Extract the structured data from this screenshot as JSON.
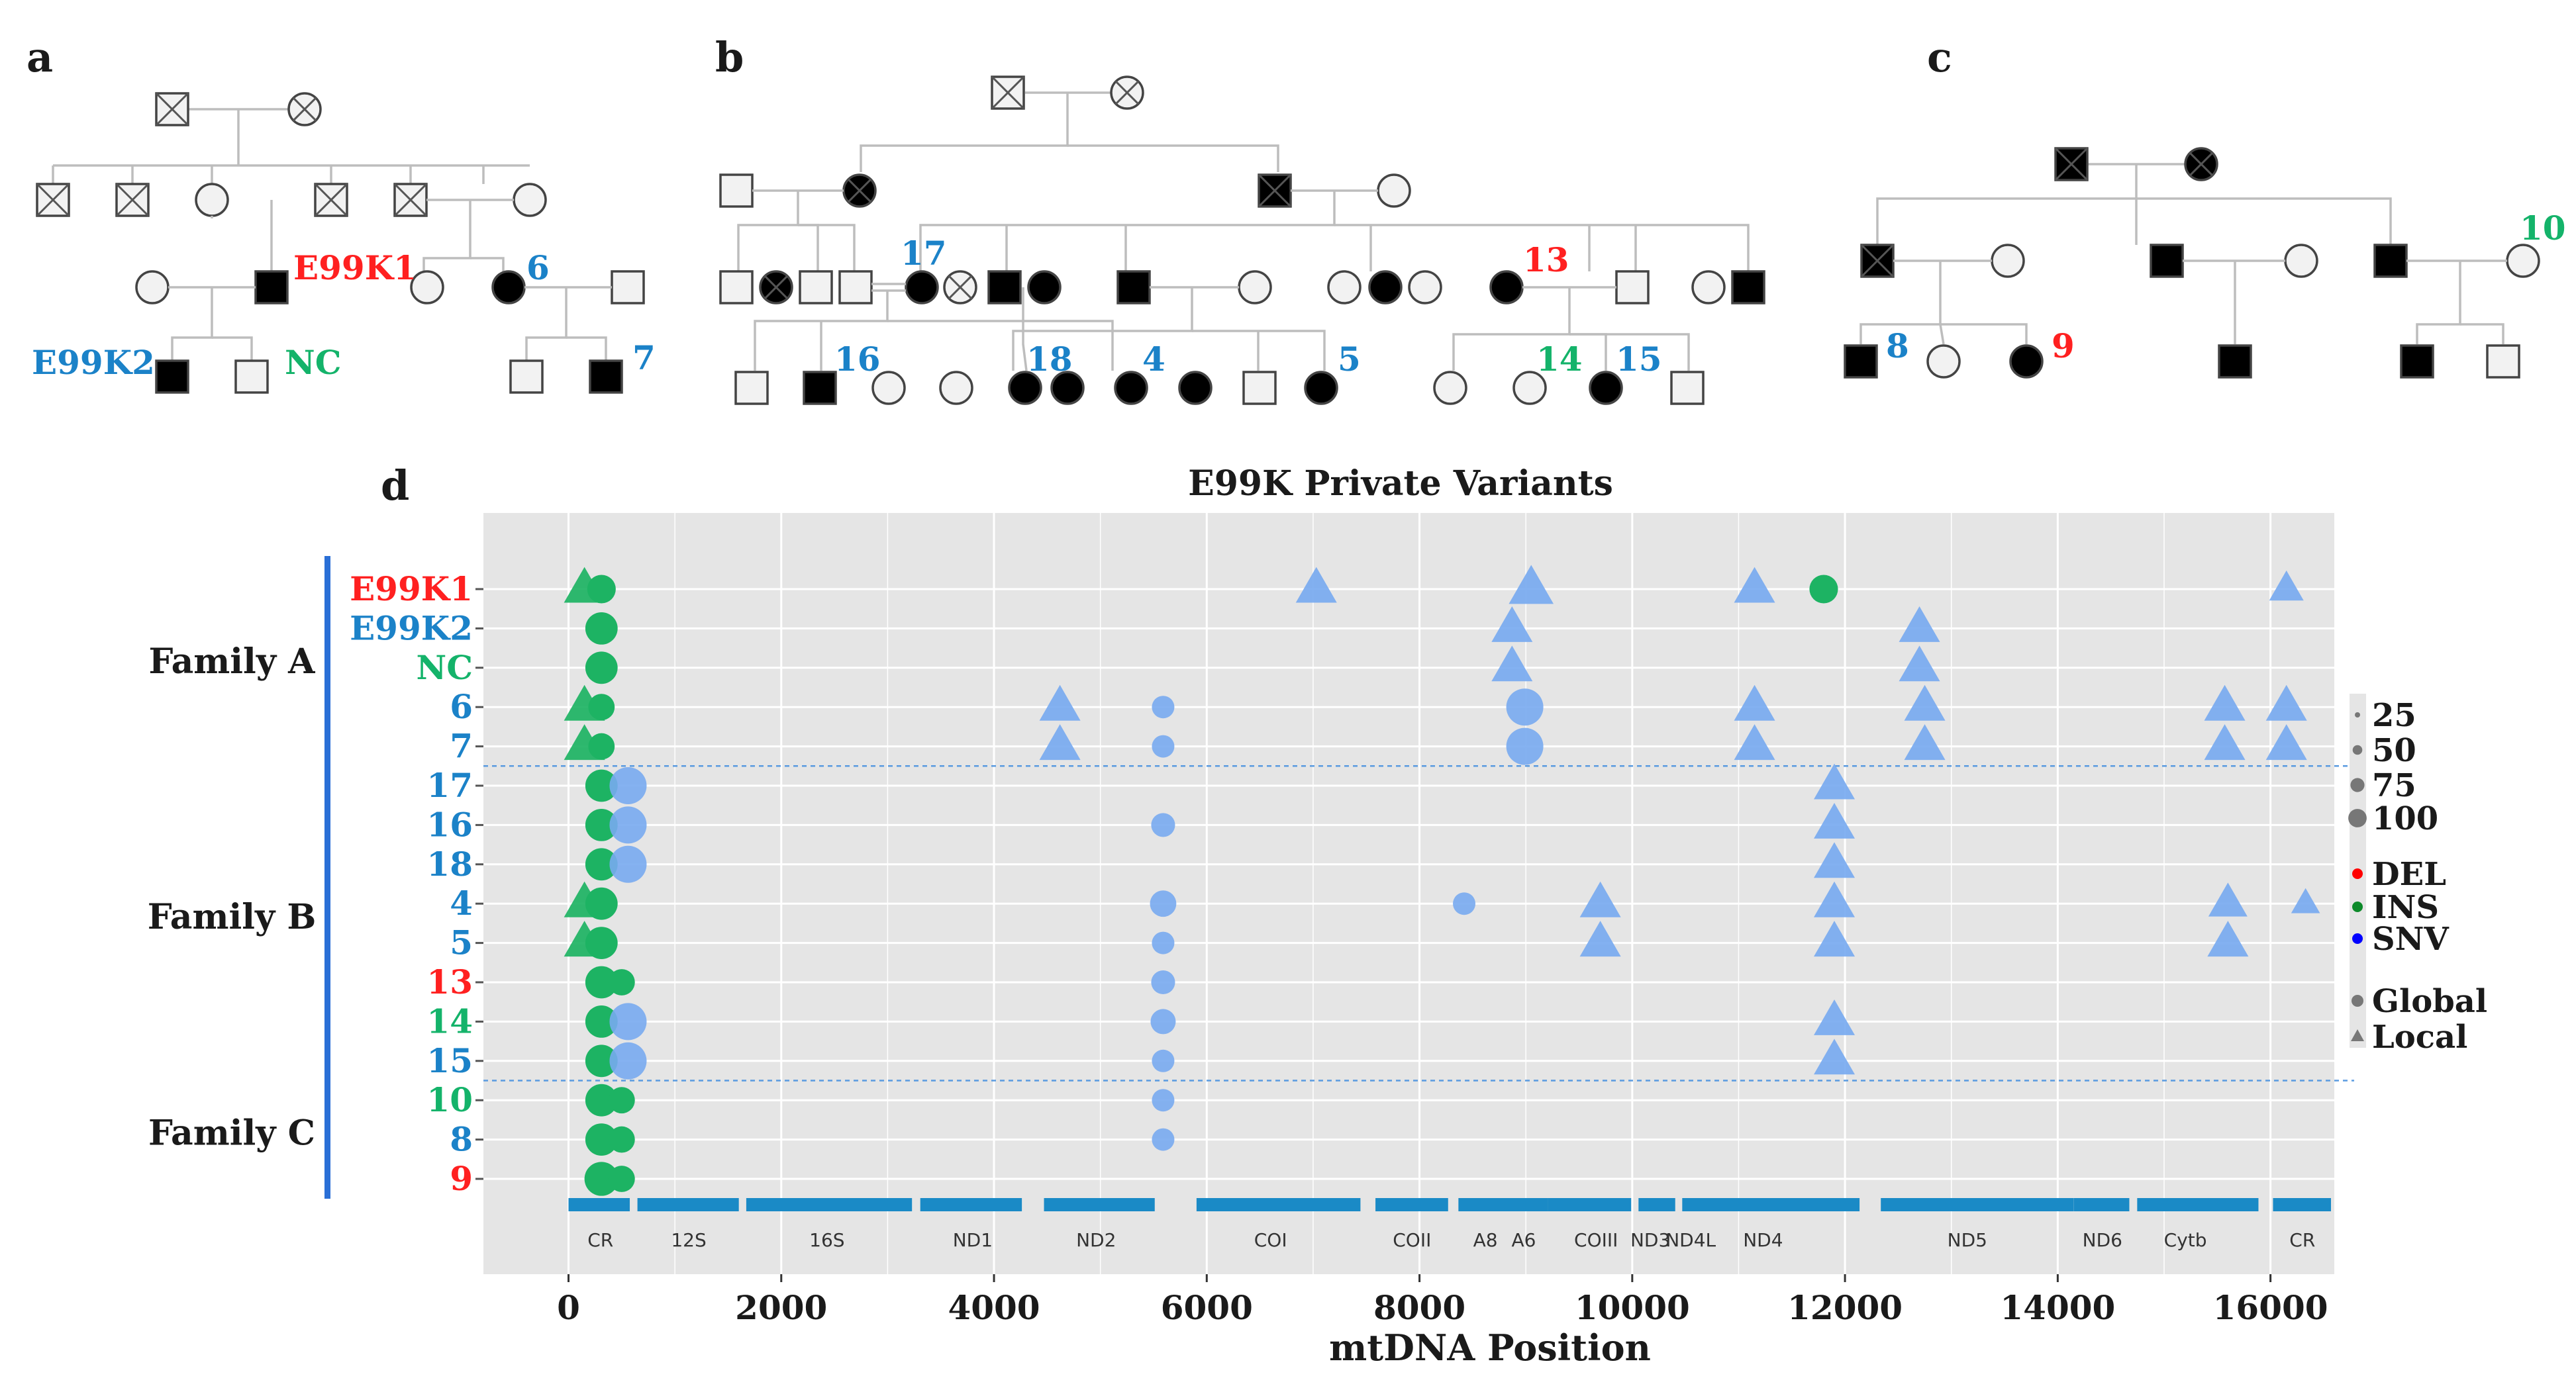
{
  "colors": {
    "red": "#ff2020",
    "blue": "#1b82c8",
    "green": "#14b36a",
    "panel_bg": "#e5e5e5",
    "grid": "#ffffff",
    "marker_blue": "#78aaf0",
    "marker_green": "#1db363",
    "gene_bar": "#1a8ac6",
    "family_bar": "#2a6fd6",
    "affected": "#000000",
    "unaffected": "#f2f2f2"
  },
  "panels": {
    "a": "a",
    "b": "b",
    "c": "c",
    "d": "d"
  },
  "pedigree_labels": {
    "a": [
      {
        "text": "E99K1",
        "color": "red"
      },
      {
        "text": "6",
        "color": "blue"
      },
      {
        "text": "E99K2",
        "color": "blue"
      },
      {
        "text": "NC",
        "color": "green"
      },
      {
        "text": "7",
        "color": "blue"
      }
    ],
    "b": [
      {
        "text": "17",
        "color": "blue"
      },
      {
        "text": "13",
        "color": "red"
      },
      {
        "text": "16",
        "color": "blue"
      },
      {
        "text": "18",
        "color": "blue"
      },
      {
        "text": "4",
        "color": "blue"
      },
      {
        "text": "5",
        "color": "blue"
      },
      {
        "text": "14",
        "color": "green"
      },
      {
        "text": "15",
        "color": "blue"
      }
    ],
    "c": [
      {
        "text": "10",
        "color": "green"
      },
      {
        "text": "8",
        "color": "blue"
      },
      {
        "text": "9",
        "color": "red"
      }
    ]
  },
  "chart_data": {
    "type": "scatter",
    "title": "E99K Private Variants",
    "xlabel": "mtDNA Position",
    "ylabel": "",
    "xlim": [
      -800,
      16600
    ],
    "xticks": [
      0,
      2000,
      4000,
      6000,
      8000,
      10000,
      12000,
      14000,
      16000
    ],
    "families": [
      {
        "name": "Family A",
        "samples": [
          "E99K1",
          "E99K2",
          "NC",
          "6",
          "7"
        ]
      },
      {
        "name": "Family B",
        "samples": [
          "17",
          "16",
          "18",
          "4",
          "5",
          "13",
          "14",
          "15"
        ]
      },
      {
        "name": "Family C",
        "samples": [
          "10",
          "8",
          "9"
        ]
      }
    ],
    "samples": [
      {
        "label": "E99K1",
        "color": "red"
      },
      {
        "label": "E99K2",
        "color": "blue"
      },
      {
        "label": "NC",
        "color": "green"
      },
      {
        "label": "6",
        "color": "blue"
      },
      {
        "label": "7",
        "color": "blue"
      },
      {
        "label": "17",
        "color": "blue"
      },
      {
        "label": "16",
        "color": "blue"
      },
      {
        "label": "18",
        "color": "blue"
      },
      {
        "label": "4",
        "color": "blue"
      },
      {
        "label": "5",
        "color": "blue"
      },
      {
        "label": "13",
        "color": "red"
      },
      {
        "label": "14",
        "color": "green"
      },
      {
        "label": "15",
        "color": "blue"
      },
      {
        "label": "10",
        "color": "green"
      },
      {
        "label": "8",
        "color": "blue"
      },
      {
        "label": "9",
        "color": "red"
      }
    ],
    "genes": [
      {
        "name": "CR",
        "start": 0,
        "end": 576
      },
      {
        "name": "12S",
        "start": 648,
        "end": 1601
      },
      {
        "name": "16S",
        "start": 1671,
        "end": 3229
      },
      {
        "name": "ND1",
        "start": 3307,
        "end": 4262
      },
      {
        "name": "ND2",
        "start": 4470,
        "end": 5511
      },
      {
        "name": "COI",
        "start": 5904,
        "end": 7445
      },
      {
        "name": "COII",
        "start": 7586,
        "end": 8269
      },
      {
        "name": "A8",
        "start": 8366,
        "end": 8572
      },
      {
        "name": "A6",
        "start": 8527,
        "end": 9207
      },
      {
        "name": "COIII",
        "start": 9207,
        "end": 9990
      },
      {
        "name": "ND3",
        "start": 10059,
        "end": 10404
      },
      {
        "name": "ND4L",
        "start": 10470,
        "end": 10766
      },
      {
        "name": "ND4",
        "start": 10760,
        "end": 12137
      },
      {
        "name": "ND5",
        "start": 12337,
        "end": 14148
      },
      {
        "name": "ND6",
        "start": 14149,
        "end": 14673
      },
      {
        "name": "Cytb",
        "start": 14747,
        "end": 15887
      },
      {
        "name": "CR",
        "start": 16024,
        "end": 16569
      }
    ],
    "gene_label_positions": [
      {
        "name": "CR",
        "x": 300
      },
      {
        "name": "12S",
        "x": 1130
      },
      {
        "name": "16S",
        "x": 2430
      },
      {
        "name": "ND1",
        "x": 3800
      },
      {
        "name": "ND2",
        "x": 4960
      },
      {
        "name": "COI",
        "x": 6600
      },
      {
        "name": "COII",
        "x": 7930
      },
      {
        "name": "A8",
        "x": 8620
      },
      {
        "name": "A6",
        "x": 8980
      },
      {
        "name": "COIII",
        "x": 9660
      },
      {
        "name": "ND3",
        "x": 10170
      },
      {
        "name": "ND4L",
        "x": 10550
      },
      {
        "name": "ND4",
        "x": 11230
      },
      {
        "name": "ND5",
        "x": 13150
      },
      {
        "name": "ND6",
        "x": 14420
      },
      {
        "name": "Cytb",
        "x": 15200
      },
      {
        "name": "CR",
        "x": 16300
      }
    ],
    "variants": [
      {
        "sample": "E99K1",
        "pos": 150,
        "type": "INS",
        "site": "Local",
        "af": 80
      },
      {
        "sample": "E99K1",
        "pos": 310,
        "type": "INS",
        "site": "Global",
        "af": 50
      },
      {
        "sample": "E99K1",
        "pos": 7030,
        "type": "SNV",
        "site": "Local",
        "af": 80
      },
      {
        "sample": "E99K1",
        "pos": 9050,
        "type": "SNV",
        "site": "Local",
        "af": 100
      },
      {
        "sample": "E99K1",
        "pos": 11150,
        "type": "SNV",
        "site": "Local",
        "af": 80
      },
      {
        "sample": "E99K1",
        "pos": 11800,
        "type": "INS",
        "site": "Global",
        "af": 50
      },
      {
        "sample": "E99K1",
        "pos": 16150,
        "type": "SNV",
        "site": "Local",
        "af": 50
      },
      {
        "sample": "E99K2",
        "pos": 310,
        "type": "INS",
        "site": "Global",
        "af": 70
      },
      {
        "sample": "E99K2",
        "pos": 8870,
        "type": "SNV",
        "site": "Local",
        "af": 80
      },
      {
        "sample": "E99K2",
        "pos": 12700,
        "type": "SNV",
        "site": "Local",
        "af": 80
      },
      {
        "sample": "NC",
        "pos": 310,
        "type": "INS",
        "site": "Global",
        "af": 70
      },
      {
        "sample": "NC",
        "pos": 8870,
        "type": "SNV",
        "site": "Local",
        "af": 80
      },
      {
        "sample": "NC",
        "pos": 12700,
        "type": "SNV",
        "site": "Local",
        "af": 80
      },
      {
        "sample": "6",
        "pos": 150,
        "type": "INS",
        "site": "Local",
        "af": 80
      },
      {
        "sample": "6",
        "pos": 310,
        "type": "INS",
        "site": "Global",
        "af": 40
      },
      {
        "sample": "6",
        "pos": 4620,
        "type": "SNV",
        "site": "Local",
        "af": 80
      },
      {
        "sample": "6",
        "pos": 5590,
        "type": "SNV",
        "site": "Global",
        "af": 25
      },
      {
        "sample": "6",
        "pos": 8990,
        "type": "SNV",
        "site": "Global",
        "af": 100
      },
      {
        "sample": "6",
        "pos": 11150,
        "type": "SNV",
        "site": "Local",
        "af": 80
      },
      {
        "sample": "6",
        "pos": 12750,
        "type": "SNV",
        "site": "Local",
        "af": 80
      },
      {
        "sample": "6",
        "pos": 15570,
        "type": "SNV",
        "site": "Local",
        "af": 80
      },
      {
        "sample": "6",
        "pos": 16150,
        "type": "SNV",
        "site": "Local",
        "af": 80
      },
      {
        "sample": "7",
        "pos": 150,
        "type": "INS",
        "site": "Local",
        "af": 80
      },
      {
        "sample": "7",
        "pos": 310,
        "type": "INS",
        "site": "Global",
        "af": 40
      },
      {
        "sample": "7",
        "pos": 4620,
        "type": "SNV",
        "site": "Local",
        "af": 80
      },
      {
        "sample": "7",
        "pos": 5590,
        "type": "SNV",
        "site": "Global",
        "af": 25
      },
      {
        "sample": "7",
        "pos": 8990,
        "type": "SNV",
        "site": "Global",
        "af": 100
      },
      {
        "sample": "7",
        "pos": 11150,
        "type": "SNV",
        "site": "Local",
        "af": 80
      },
      {
        "sample": "7",
        "pos": 12750,
        "type": "SNV",
        "site": "Local",
        "af": 80
      },
      {
        "sample": "7",
        "pos": 15570,
        "type": "SNV",
        "site": "Local",
        "af": 80
      },
      {
        "sample": "7",
        "pos": 16150,
        "type": "SNV",
        "site": "Local",
        "af": 80
      },
      {
        "sample": "17",
        "pos": 310,
        "type": "INS",
        "site": "Global",
        "af": 70
      },
      {
        "sample": "17",
        "pos": 560,
        "type": "SNV",
        "site": "Global",
        "af": 100
      },
      {
        "sample": "17",
        "pos": 11900,
        "type": "SNV",
        "site": "Local",
        "af": 80
      },
      {
        "sample": "16",
        "pos": 310,
        "type": "INS",
        "site": "Global",
        "af": 70
      },
      {
        "sample": "16",
        "pos": 560,
        "type": "SNV",
        "site": "Global",
        "af": 100
      },
      {
        "sample": "16",
        "pos": 5590,
        "type": "SNV",
        "site": "Global",
        "af": 30
      },
      {
        "sample": "16",
        "pos": 11900,
        "type": "SNV",
        "site": "Local",
        "af": 80
      },
      {
        "sample": "18",
        "pos": 310,
        "type": "INS",
        "site": "Global",
        "af": 70
      },
      {
        "sample": "18",
        "pos": 560,
        "type": "SNV",
        "site": "Global",
        "af": 100
      },
      {
        "sample": "18",
        "pos": 11900,
        "type": "SNV",
        "site": "Local",
        "af": 80
      },
      {
        "sample": "4",
        "pos": 150,
        "type": "INS",
        "site": "Local",
        "af": 80
      },
      {
        "sample": "4",
        "pos": 310,
        "type": "INS",
        "site": "Global",
        "af": 70
      },
      {
        "sample": "4",
        "pos": 5590,
        "type": "SNV",
        "site": "Global",
        "af": 40
      },
      {
        "sample": "4",
        "pos": 8420,
        "type": "SNV",
        "site": "Global",
        "af": 25
      },
      {
        "sample": "4",
        "pos": 9700,
        "type": "SNV",
        "site": "Local",
        "af": 80
      },
      {
        "sample": "4",
        "pos": 11900,
        "type": "SNV",
        "site": "Local",
        "af": 80
      },
      {
        "sample": "4",
        "pos": 15600,
        "type": "SNV",
        "site": "Local",
        "af": 70
      },
      {
        "sample": "4",
        "pos": 16330,
        "type": "SNV",
        "site": "Local",
        "af": 30
      },
      {
        "sample": "5",
        "pos": 150,
        "type": "INS",
        "site": "Local",
        "af": 80
      },
      {
        "sample": "5",
        "pos": 310,
        "type": "INS",
        "site": "Global",
        "af": 70
      },
      {
        "sample": "5",
        "pos": 5590,
        "type": "SNV",
        "site": "Global",
        "af": 25
      },
      {
        "sample": "5",
        "pos": 9700,
        "type": "SNV",
        "site": "Local",
        "af": 80
      },
      {
        "sample": "5",
        "pos": 11900,
        "type": "SNV",
        "site": "Local",
        "af": 80
      },
      {
        "sample": "5",
        "pos": 15600,
        "type": "SNV",
        "site": "Local",
        "af": 80
      },
      {
        "sample": "13",
        "pos": 310,
        "type": "INS",
        "site": "Global",
        "af": 70
      },
      {
        "sample": "13",
        "pos": 500,
        "type": "INS",
        "site": "Global",
        "af": 40
      },
      {
        "sample": "13",
        "pos": 5590,
        "type": "SNV",
        "site": "Global",
        "af": 30
      },
      {
        "sample": "14",
        "pos": 310,
        "type": "INS",
        "site": "Global",
        "af": 70
      },
      {
        "sample": "14",
        "pos": 560,
        "type": "SNV",
        "site": "Global",
        "af": 100
      },
      {
        "sample": "14",
        "pos": 5590,
        "type": "SNV",
        "site": "Global",
        "af": 35
      },
      {
        "sample": "14",
        "pos": 11900,
        "type": "SNV",
        "site": "Local",
        "af": 80
      },
      {
        "sample": "15",
        "pos": 310,
        "type": "INS",
        "site": "Global",
        "af": 70
      },
      {
        "sample": "15",
        "pos": 560,
        "type": "SNV",
        "site": "Global",
        "af": 100
      },
      {
        "sample": "15",
        "pos": 5590,
        "type": "SNV",
        "site": "Global",
        "af": 25
      },
      {
        "sample": "15",
        "pos": 11900,
        "type": "SNV",
        "site": "Local",
        "af": 80
      },
      {
        "sample": "10",
        "pos": 310,
        "type": "INS",
        "site": "Global",
        "af": 70
      },
      {
        "sample": "10",
        "pos": 500,
        "type": "INS",
        "site": "Global",
        "af": 40
      },
      {
        "sample": "10",
        "pos": 5590,
        "type": "SNV",
        "site": "Global",
        "af": 25
      },
      {
        "sample": "8",
        "pos": 310,
        "type": "INS",
        "site": "Global",
        "af": 70
      },
      {
        "sample": "8",
        "pos": 500,
        "type": "INS",
        "site": "Global",
        "af": 40
      },
      {
        "sample": "8",
        "pos": 5590,
        "type": "SNV",
        "site": "Global",
        "af": 25
      },
      {
        "sample": "9",
        "pos": 310,
        "type": "INS",
        "site": "Global",
        "af": 80
      },
      {
        "sample": "9",
        "pos": 500,
        "type": "INS",
        "site": "Global",
        "af": 40
      }
    ],
    "legend": {
      "size": {
        "values": [
          25,
          50,
          75,
          100
        ]
      },
      "type": {
        "entries": [
          {
            "label": "DEL",
            "color": "#ff0000"
          },
          {
            "label": "INS",
            "color": "#0d8a2a"
          },
          {
            "label": "SNV",
            "color": "#0000ff"
          }
        ]
      },
      "site": {
        "entries": [
          {
            "label": "Global",
            "shape": "circle"
          },
          {
            "label": "Local",
            "shape": "triangle"
          }
        ]
      }
    }
  }
}
